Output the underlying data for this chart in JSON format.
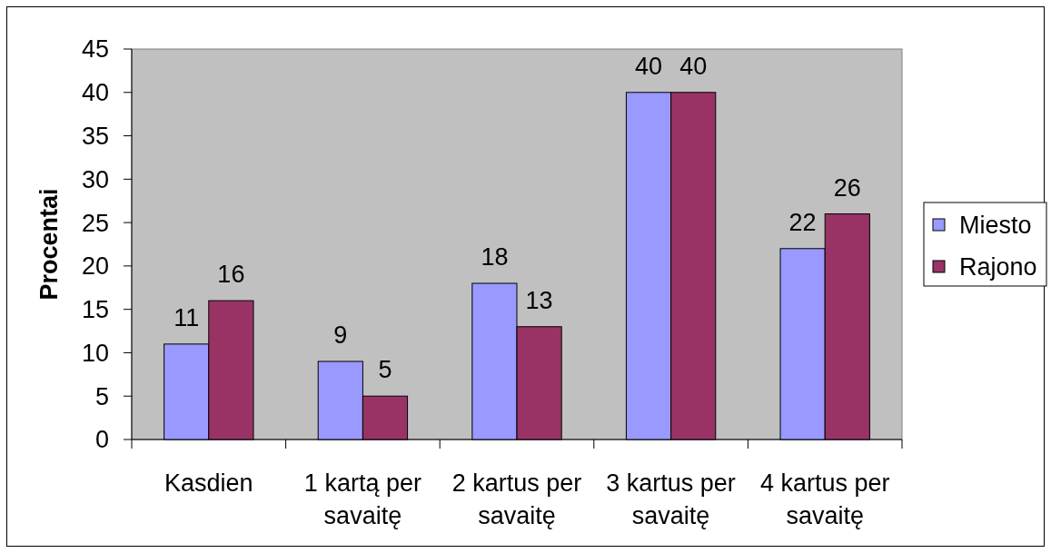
{
  "chart_data": {
    "type": "bar",
    "ylabel": "Procentai",
    "categories": [
      "Kasdien",
      "1 kartą per savaitę",
      "2 kartus per savaitę",
      "3 kartus per savaitę",
      "4 kartus per savaitę"
    ],
    "series": [
      {
        "name": "Miesto",
        "color": "#9999ff",
        "values": [
          11,
          9,
          18,
          40,
          22
        ]
      },
      {
        "name": "Rajono",
        "color": "#993366",
        "values": [
          16,
          5,
          13,
          40,
          26
        ]
      }
    ],
    "ylim": [
      0,
      45
    ],
    "yticks": [
      0,
      5,
      10,
      15,
      20,
      25,
      30,
      35,
      40,
      45
    ],
    "data_labels": true,
    "legend": "right",
    "grid": false
  }
}
